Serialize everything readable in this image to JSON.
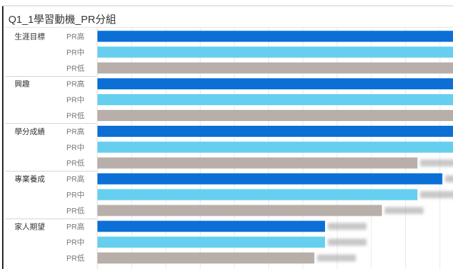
{
  "chart_data": {
    "type": "bar",
    "orientation": "horizontal",
    "title": "Q1_1學習動機_PR分組",
    "categories": [
      "生涯目標",
      "興趣",
      "學分成績",
      "專業養成",
      "家人期望"
    ],
    "subgroups": [
      "PR高",
      "PR中",
      "PR低"
    ],
    "series": [
      {
        "name": "PR高",
        "color": "#0b6fd6",
        "values": [
          1.0,
          1.0,
          1.0,
          0.97,
          0.64
        ]
      },
      {
        "name": "PR中",
        "color": "#66cff0",
        "values": [
          1.0,
          1.0,
          1.0,
          0.9,
          0.64
        ]
      },
      {
        "name": "PR低",
        "color": "#b8afaa",
        "values": [
          1.0,
          1.0,
          0.9,
          0.8,
          0.61
        ]
      }
    ],
    "xlim": [
      0,
      1.0
    ],
    "value_labels": "blurred",
    "grid": true,
    "legend": "none"
  }
}
